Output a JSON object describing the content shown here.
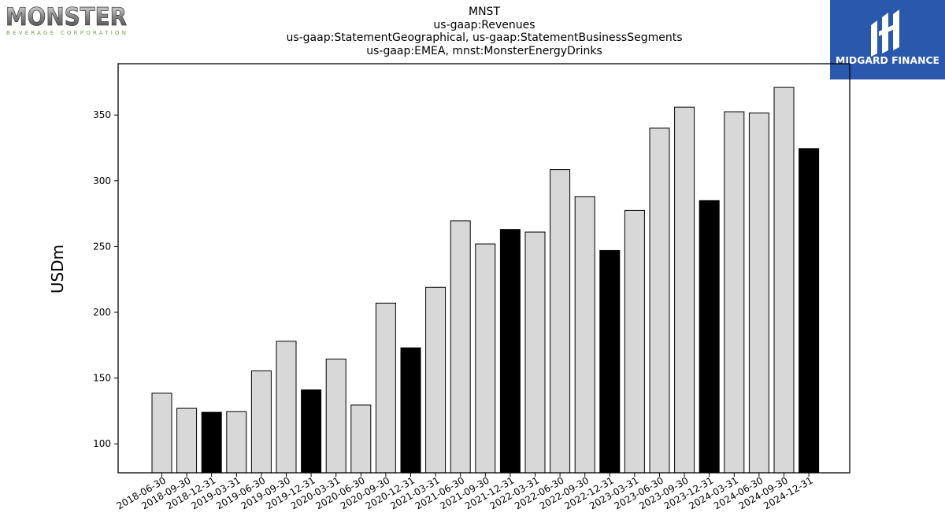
{
  "header": {
    "title_lines": [
      "MNST",
      "us-gaap:Revenues",
      "us-gaap:StatementGeographical, us-gaap:StatementBusinessSegments",
      "us-gaap:EMEA, mnst:MonsterEnergyDrinks"
    ]
  },
  "logos": {
    "left": {
      "word": "MONSTER",
      "subword": "BEVERAGE CORPORATION",
      "icon": "monster-logo"
    },
    "right": {
      "word": "MIDGARD FINANCE",
      "icon": "midgard-logo",
      "color": "#2a58ad"
    }
  },
  "chart_data": {
    "type": "bar",
    "ylabel": "USDm",
    "xlabel": "",
    "ylim": [
      78,
      389
    ],
    "yticks": [
      100,
      150,
      200,
      250,
      300,
      350
    ],
    "grid": false,
    "colors": {
      "regular": "#d8d8d8",
      "year_end": "#000000",
      "edge": "#000000"
    },
    "categories": [
      "2018-06-30",
      "2018-09-30",
      "2018-12-31",
      "2019-03-31",
      "2019-06-30",
      "2019-09-30",
      "2019-12-31",
      "2020-03-31",
      "2020-06-30",
      "2020-09-30",
      "2020-12-31",
      "2021-03-31",
      "2021-06-30",
      "2021-09-30",
      "2021-12-31",
      "2022-03-31",
      "2022-06-30",
      "2022-09-30",
      "2022-12-31",
      "2023-03-31",
      "2023-06-30",
      "2023-09-30",
      "2023-12-31",
      "2024-03-31",
      "2024-06-30",
      "2024-09-30",
      "2024-12-31"
    ],
    "values": [
      138.5,
      127,
      124,
      124.5,
      155.5,
      178,
      141,
      164.5,
      129.5,
      207,
      173,
      219,
      269.5,
      252,
      263,
      261,
      308.5,
      288,
      247,
      277.5,
      340,
      356,
      285,
      352.5,
      351.5,
      371,
      324.5
    ]
  }
}
